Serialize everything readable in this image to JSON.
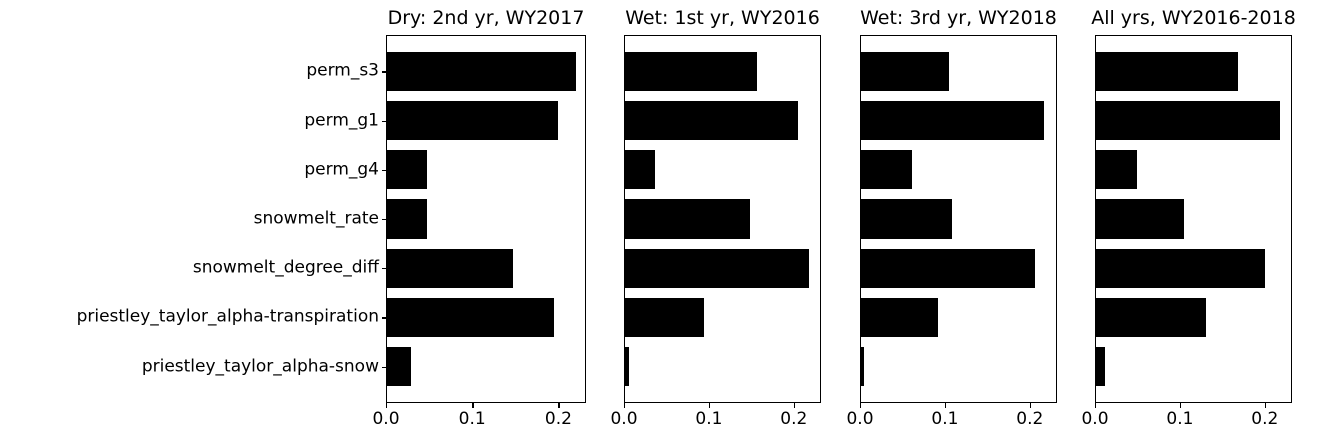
{
  "chart_data": {
    "type": "bar",
    "orientation": "horizontal",
    "title": "",
    "xlabel": "",
    "ylabel": "",
    "grid": false,
    "legend": "none",
    "background_color": "#ffffff",
    "bar_color": "#000000",
    "categories": [
      "perm_s3",
      "perm_g1",
      "perm_g4",
      "snowmelt_rate",
      "snowmelt_degree_diff",
      "priestley_taylor_alpha-transpiration",
      "priestley_taylor_alpha-snow"
    ],
    "series": [
      {
        "name": "Dry: 2nd yr, WY2017",
        "values": [
          0.221,
          0.2,
          0.046,
          0.046,
          0.147,
          0.195,
          0.028
        ]
      },
      {
        "name": "Wet: 1st yr, WY2016",
        "values": [
          0.157,
          0.205,
          0.035,
          0.148,
          0.218,
          0.094,
          0.004
        ]
      },
      {
        "name": "Wet: 3rd yr, WY2018",
        "values": [
          0.104,
          0.217,
          0.06,
          0.108,
          0.207,
          0.091,
          0.003
        ]
      },
      {
        "name": "All yrs, WY2016-2018",
        "values": [
          0.168,
          0.218,
          0.049,
          0.104,
          0.201,
          0.131,
          0.01
        ]
      }
    ],
    "xticks": [
      "0.0",
      "0.1",
      "0.2"
    ],
    "xtick_values": [
      0.0,
      0.1,
      0.2
    ],
    "xlim": [
      0,
      0.232
    ]
  }
}
